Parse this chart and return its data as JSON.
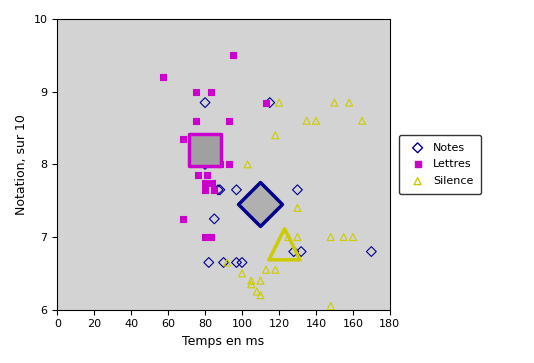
{
  "title": "",
  "xlabel": "Temps en ms",
  "ylabel": "Notation, sur 10",
  "xlim": [
    0,
    180
  ],
  "ylim": [
    6,
    10
  ],
  "xticks": [
    0,
    20,
    40,
    60,
    80,
    100,
    120,
    140,
    160,
    180
  ],
  "yticks": [
    6,
    7,
    8,
    9,
    10
  ],
  "bg_color": "#d3d3d3",
  "notes_small": [
    [
      80,
      8.85
    ],
    [
      115,
      8.85
    ],
    [
      82,
      8.2
    ],
    [
      87,
      7.65
    ],
    [
      88,
      7.65
    ],
    [
      80,
      8.0
    ],
    [
      85,
      7.25
    ],
    [
      97,
      7.65
    ],
    [
      130,
      7.65
    ],
    [
      82,
      6.65
    ],
    [
      90,
      6.65
    ],
    [
      97,
      6.65
    ],
    [
      100,
      6.65
    ],
    [
      128,
      6.8
    ],
    [
      132,
      6.8
    ],
    [
      170,
      6.8
    ]
  ],
  "notes_mean": [
    110,
    7.45
  ],
  "notes_color": "#00008B",
  "lettres_small": [
    [
      57,
      9.2
    ],
    [
      75,
      9.0
    ],
    [
      83,
      9.0
    ],
    [
      75,
      8.6
    ],
    [
      68,
      8.35
    ],
    [
      76,
      7.85
    ],
    [
      81,
      7.85
    ],
    [
      84,
      7.75
    ],
    [
      80,
      7.75
    ],
    [
      80,
      7.65
    ],
    [
      85,
      7.65
    ],
    [
      68,
      7.25
    ],
    [
      80,
      7.0
    ],
    [
      83,
      7.0
    ],
    [
      88,
      8.0
    ],
    [
      93,
      8.0
    ],
    [
      93,
      8.6
    ],
    [
      113,
      8.85
    ],
    [
      95,
      9.5
    ]
  ],
  "lettres_mean": [
    80,
    8.2
  ],
  "lettres_color": "#CC00CC",
  "silence_small": [
    [
      92,
      6.65
    ],
    [
      100,
      6.5
    ],
    [
      105,
      6.35
    ],
    [
      108,
      6.25
    ],
    [
      110,
      6.2
    ],
    [
      113,
      6.55
    ],
    [
      118,
      6.55
    ],
    [
      105,
      6.4
    ],
    [
      110,
      6.4
    ],
    [
      148,
      6.05
    ],
    [
      125,
      7.0
    ],
    [
      130,
      7.0
    ],
    [
      148,
      7.0
    ],
    [
      155,
      7.0
    ],
    [
      160,
      7.0
    ],
    [
      130,
      7.4
    ],
    [
      103,
      8.0
    ],
    [
      118,
      8.4
    ],
    [
      120,
      8.85
    ],
    [
      135,
      8.6
    ],
    [
      140,
      8.6
    ],
    [
      150,
      8.85
    ],
    [
      158,
      8.85
    ],
    [
      165,
      8.6
    ]
  ],
  "silence_mean": [
    123,
    6.9
  ],
  "silence_color": "#CCCC00",
  "small_marker_size": 25,
  "mean_marker_size": 500,
  "legend_labels": [
    "Notes",
    "Lettres",
    "Silence"
  ]
}
